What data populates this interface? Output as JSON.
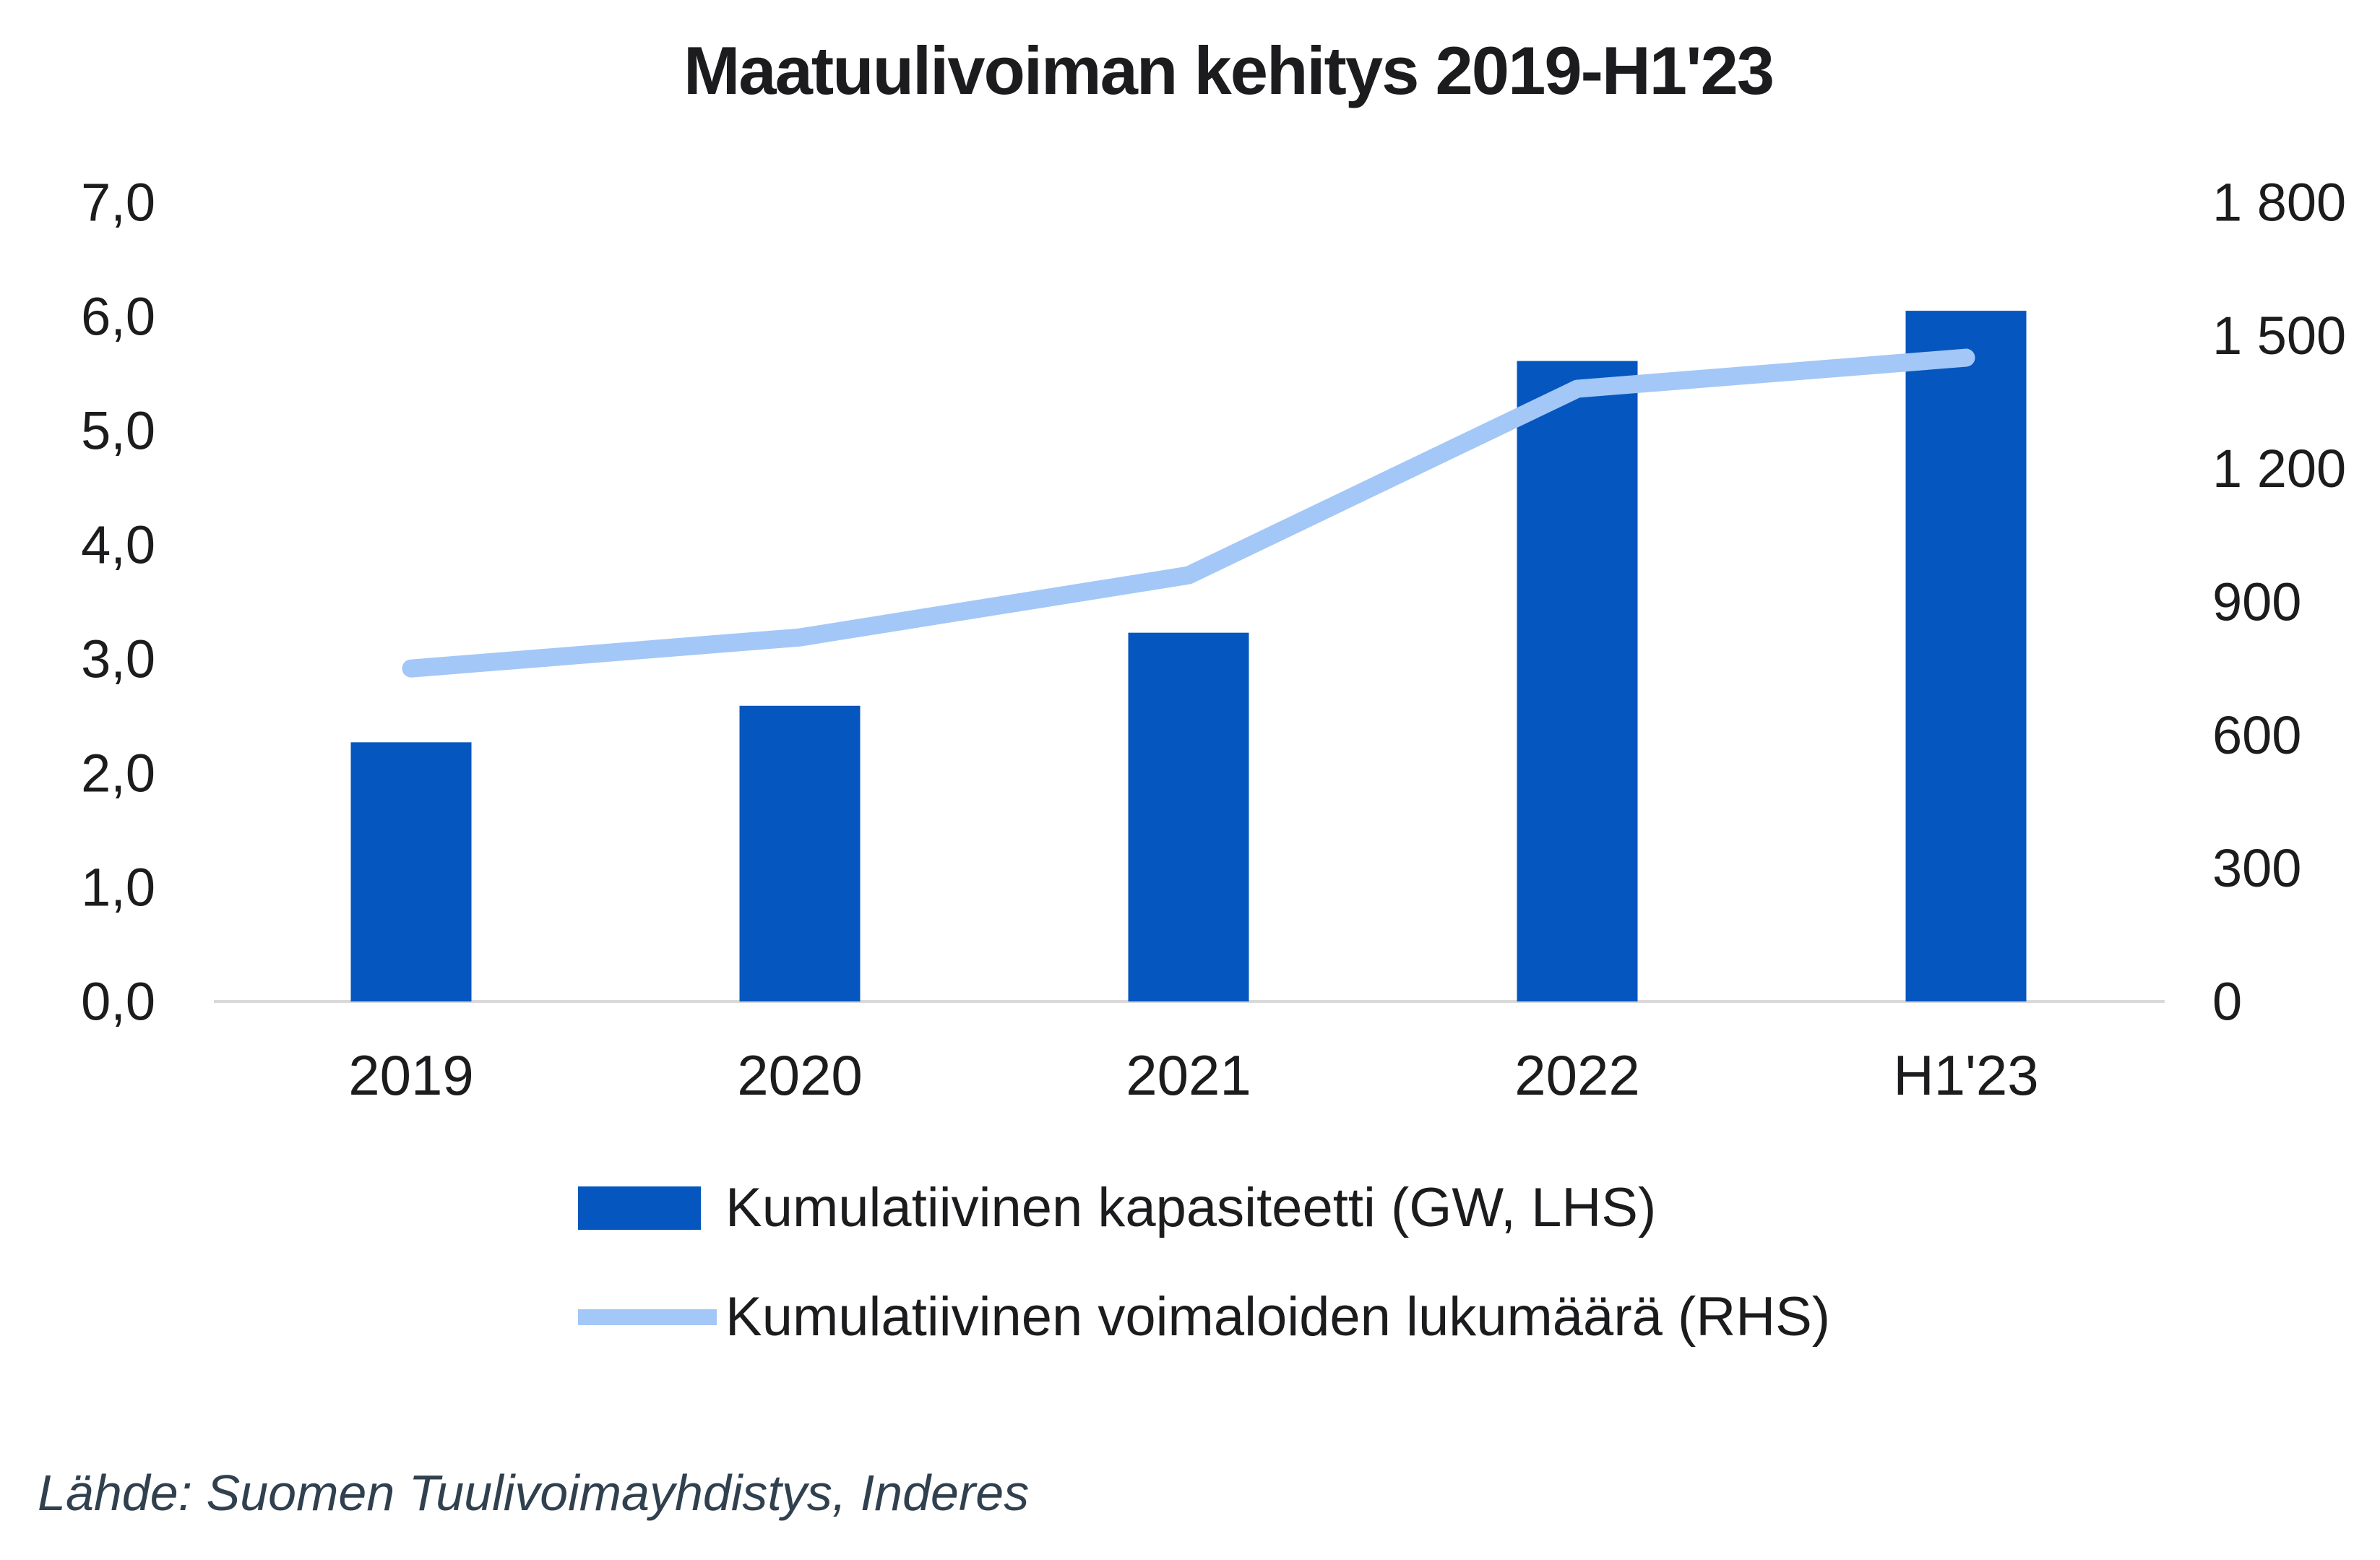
{
  "title": "Maatuulivoiman kehitys 2019-H1'23",
  "source": "Lähde: Suomen Tuulivoimayhdistys, Inderes",
  "colors": {
    "bar": "#0556BE",
    "line": "#A3C7F7",
    "axis_line": "#D9D9D9",
    "text": "#1C1C1E",
    "source_text": "#30404F"
  },
  "legend": {
    "items": [
      {
        "label": "Kumulatiivinen kapasiteetti (GW, LHS)",
        "swatch": "bar"
      },
      {
        "label": "Kumulatiivinen voimaloiden lukumäärä (RHS)",
        "swatch": "line"
      }
    ]
  },
  "chart_data": {
    "type": "bar",
    "subtype": "bar-line-combo",
    "title": "Maatuulivoiman kehitys 2019-H1'23",
    "categories": [
      "2019",
      "2020",
      "2021",
      "2022",
      "H1'23"
    ],
    "series": [
      {
        "name": "Kumulatiivinen kapasiteetti (GW, LHS)",
        "type": "bar",
        "axis": "left",
        "values": [
          2.27,
          2.59,
          3.23,
          5.61,
          6.05
        ]
      },
      {
        "name": "Kumulatiivinen voimaloiden lukumäärä (RHS)",
        "type": "line",
        "axis": "right",
        "values": [
          750,
          820,
          960,
          1380,
          1450
        ]
      }
    ],
    "left_axis": {
      "min": 0,
      "max": 7,
      "step": 1,
      "tick_labels": [
        "0,0",
        "1,0",
        "2,0",
        "3,0",
        "4,0",
        "5,0",
        "6,0",
        "7,0"
      ]
    },
    "right_axis": {
      "min": 0,
      "max": 1800,
      "step": 300,
      "tick_labels": [
        "0",
        "300",
        "600",
        "900",
        "1 200",
        "1 500",
        "1 800"
      ]
    },
    "grid": false,
    "legend_position": "bottom",
    "xlabel": "",
    "ylabel_left": "GW",
    "ylabel_right": "voimaloiden lukumäärä"
  }
}
